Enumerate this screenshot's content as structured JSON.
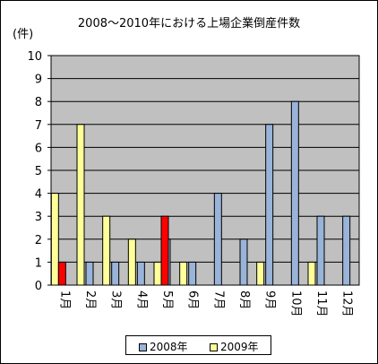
{
  "chart_data": {
    "type": "bar",
    "title": "2008～2010年における上場企業倒産件数",
    "ylabel": "(件)",
    "xlabel": "",
    "ylim": [
      0,
      10
    ],
    "yticks": [
      0,
      1,
      2,
      3,
      4,
      5,
      6,
      7,
      8,
      9,
      10
    ],
    "grid": true,
    "legend_position": "bottom",
    "categories": [
      "1月",
      "2月",
      "3月",
      "4月",
      "5月",
      "6月",
      "7月",
      "8月",
      "9月",
      "10月",
      "11月",
      "12月"
    ],
    "series": [
      {
        "name": "2008年",
        "values": [
          null,
          1,
          1,
          1,
          2,
          1,
          4,
          2,
          7,
          8,
          3,
          3
        ]
      },
      {
        "name": "2009年",
        "values": [
          4,
          7,
          3,
          2,
          1,
          1,
          null,
          null,
          1,
          null,
          1,
          null
        ]
      },
      {
        "name": "",
        "values": [
          1,
          null,
          null,
          null,
          3,
          null,
          null,
          null,
          null,
          null,
          null,
          null
        ]
      }
    ]
  },
  "colors": {
    "series_2008": "#99b3d9",
    "series_2009": "#ffff99",
    "series_2010": "#ff0000",
    "plot_background": "#c0c0c0"
  }
}
